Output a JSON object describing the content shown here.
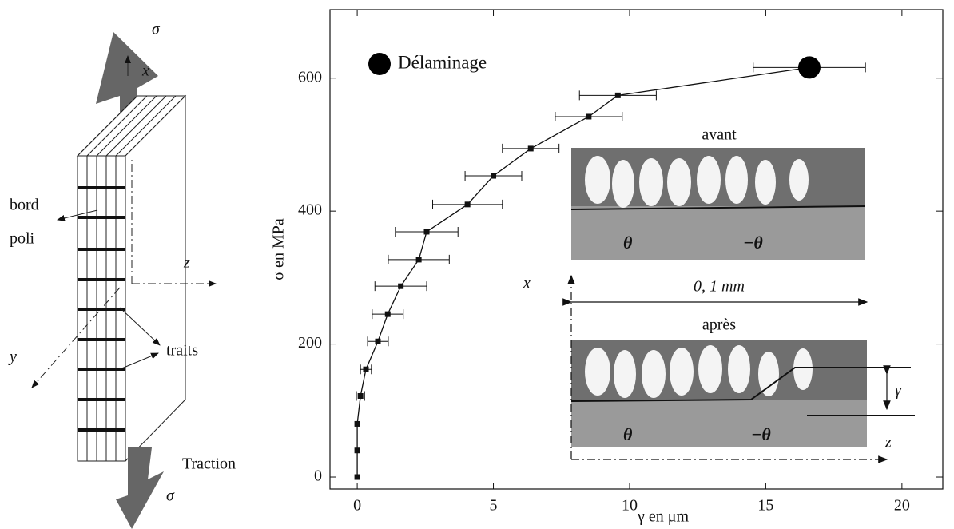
{
  "chart_data": {
    "type": "line",
    "xlabel": "γ en μm",
    "ylabel": "σ en MPa",
    "xlim": [
      -1.0,
      21.5
    ],
    "ylim": [
      -18,
      703
    ],
    "xticks": [
      0,
      5,
      10,
      15,
      20
    ],
    "yticks": [
      0,
      200,
      400,
      600
    ],
    "series": [
      {
        "color": "#111111",
        "x": [
          0,
          0,
          0,
          0.12,
          0.32,
          0.76,
          1.12,
          1.6,
          2.26,
          2.55,
          4.05,
          5.0,
          6.37,
          8.5,
          9.57
        ],
        "values": [
          0,
          40,
          80,
          122,
          162,
          204,
          245,
          287,
          327,
          369,
          410,
          453,
          494,
          542,
          574
        ],
        "xerr": [
          0,
          0,
          0,
          0.15,
          0.2,
          0.38,
          0.57,
          0.95,
          1.12,
          1.15,
          1.28,
          1.04,
          1.04,
          1.23,
          1.41
        ]
      },
      {
        "name": "Délaminage",
        "color": "#000000",
        "x": [
          16.6
        ],
        "values": [
          616
        ],
        "xerr": [
          2.06
        ]
      }
    ]
  },
  "diagram": {
    "sigma_top": "σ",
    "x_axis": "x",
    "polished_edge": [
      "bord",
      "poli"
    ],
    "z_axis": "z",
    "y_axis": "y",
    "lines": "traits",
    "traction": "Traction",
    "sigma_bottom": "σ"
  },
  "insets": {
    "before": "avant",
    "after": "après",
    "theta_before": "θ",
    "minus_theta_before": "−θ",
    "theta_after": "θ",
    "minus_theta_after": "−θ",
    "x_axis": "x",
    "scale": "0, 1 mm",
    "gamma": "γ",
    "z_axis": "z"
  }
}
